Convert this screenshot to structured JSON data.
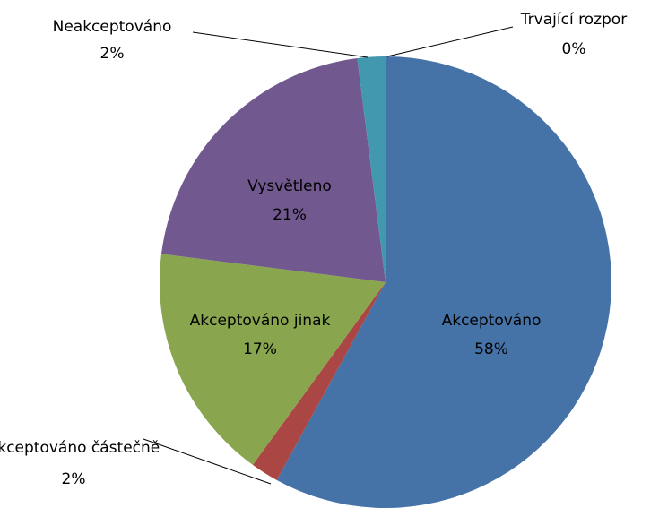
{
  "chart_data": {
    "type": "pie",
    "categories": [
      "Akceptováno",
      "Akceptováno částečně",
      "Akceptováno jinak",
      "Vysvětleno",
      "Neakceptováno",
      "Trvající rozpor"
    ],
    "values": [
      58,
      2,
      17,
      21,
      2,
      0
    ],
    "value_labels": [
      "58%",
      "2%",
      "17%",
      "21%",
      "2%",
      "0%"
    ],
    "colors": [
      "#4572a7",
      "#aa4643",
      "#89a54e",
      "#71588f",
      "#4198af",
      "#db843d"
    ]
  }
}
